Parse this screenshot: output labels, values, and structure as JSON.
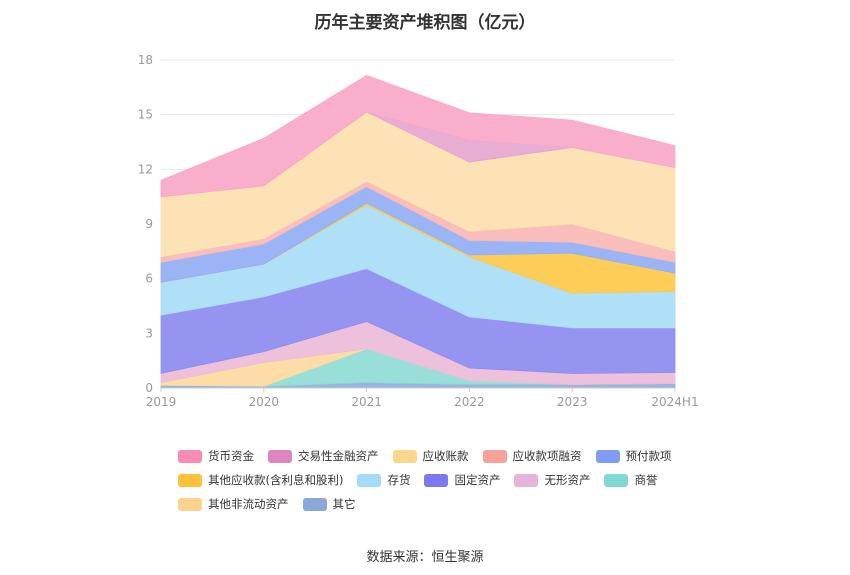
{
  "title": "历年主要资产堆积图（亿元）",
  "source": "数据来源：恒生聚源",
  "chart_data": {
    "type": "area",
    "stacked": true,
    "title": "历年主要资产堆积图（亿元）",
    "x": [
      "2019",
      "2020",
      "2021",
      "2022",
      "2023",
      "2024H1"
    ],
    "ylim": [
      0,
      18
    ],
    "yticks": [
      0,
      3,
      6,
      9,
      12,
      15,
      18
    ],
    "grid": true,
    "legend_position": "bottom",
    "series": [
      {
        "name": "其它",
        "color": "#8fb0d9",
        "values": [
          0.15,
          0.1,
          0.3,
          0.2,
          0.2,
          0.25
        ]
      },
      {
        "name": "商誉",
        "color": "#8fdcd6",
        "values": [
          0.0,
          0.0,
          1.85,
          0.2,
          0.0,
          0.0
        ]
      },
      {
        "name": "其他非流动资产",
        "color": "#fdd9a0",
        "values": [
          0.15,
          1.3,
          0.0,
          0.0,
          0.0,
          0.0
        ]
      },
      {
        "name": "无形资产",
        "color": "#ecbcd8",
        "values": [
          0.5,
          0.6,
          1.5,
          0.7,
          0.6,
          0.6
        ]
      },
      {
        "name": "固定资产",
        "color": "#8c8cf0",
        "values": [
          3.2,
          3.0,
          2.9,
          2.8,
          2.5,
          2.45
        ]
      },
      {
        "name": "存货",
        "color": "#a9dcf7",
        "values": [
          1.8,
          1.8,
          3.5,
          3.3,
          1.9,
          2.0
        ]
      },
      {
        "name": "其他应收款(含利息和股利)",
        "color": "#fdc94a",
        "values": [
          0.0,
          0.0,
          0.1,
          0.1,
          2.2,
          1.0
        ]
      },
      {
        "name": "预付款项",
        "color": "#93aef5",
        "values": [
          1.1,
          1.1,
          0.9,
          0.8,
          0.6,
          0.6
        ]
      },
      {
        "name": "应收款项融资",
        "color": "#f9b8b5",
        "values": [
          0.3,
          0.3,
          0.3,
          0.5,
          1.0,
          0.6
        ]
      },
      {
        "name": "应收账款",
        "color": "#fde0b0",
        "values": [
          3.3,
          2.9,
          3.8,
          3.8,
          4.2,
          4.6
        ]
      },
      {
        "name": "交易性金融资产",
        "color": "#e5a6cf",
        "values": [
          0.0,
          0.0,
          0.0,
          1.2,
          0.0,
          0.0
        ]
      },
      {
        "name": "货币资金",
        "color": "#f9a8c7",
        "values": [
          0.9,
          2.6,
          2.0,
          1.5,
          1.5,
          1.2
        ]
      }
    ],
    "legend": [
      {
        "name": "货币资金",
        "color": "#f98bb4"
      },
      {
        "name": "交易性金融资产",
        "color": "#dd85c0"
      },
      {
        "name": "应收账款",
        "color": "#fdd68e"
      },
      {
        "name": "应收款项融资",
        "color": "#f7a39c"
      },
      {
        "name": "预付款项",
        "color": "#7f9ef2"
      },
      {
        "name": "其他应收款(含利息和股利)",
        "color": "#fdc13a"
      },
      {
        "name": "存货",
        "color": "#a2dcfa"
      },
      {
        "name": "固定资产",
        "color": "#7c78ee"
      },
      {
        "name": "无形资产",
        "color": "#e8b3d9"
      },
      {
        "name": "商誉",
        "color": "#7fd8d1"
      },
      {
        "name": "其他非流动资产",
        "color": "#fdd28e"
      },
      {
        "name": "其它",
        "color": "#8ba8d8"
      }
    ]
  }
}
